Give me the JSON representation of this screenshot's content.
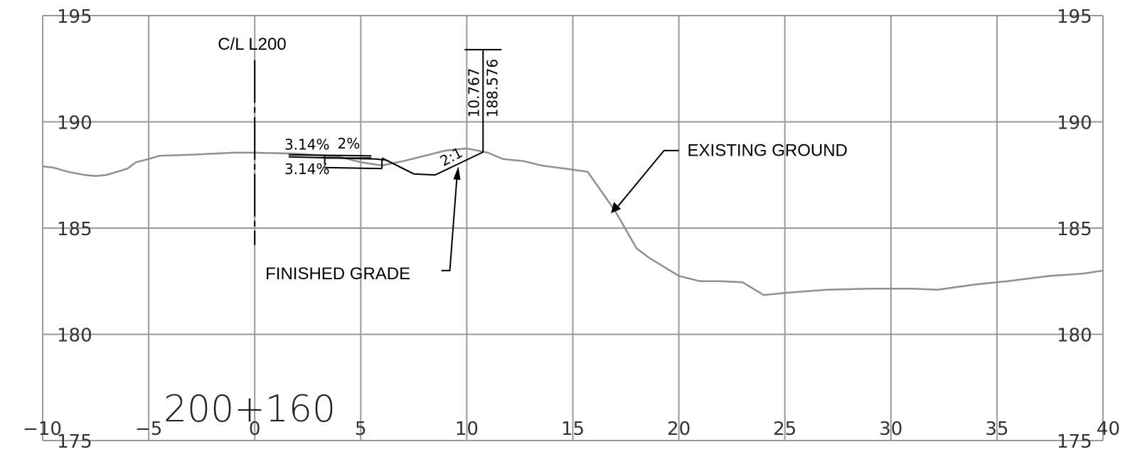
{
  "chart_data": {
    "type": "line",
    "xlim": [
      -10,
      40
    ],
    "ylim": [
      175,
      195
    ],
    "x_ticks": [
      -10,
      -5,
      0,
      5,
      10,
      15,
      20,
      25,
      30,
      35,
      40
    ],
    "y_ticks": [
      175,
      180,
      185,
      190,
      195
    ],
    "x_tick_labels": [
      "−10",
      "−5",
      "0",
      "5",
      "10",
      "15",
      "20",
      "25",
      "30",
      "35",
      "40"
    ],
    "y_tick_labels": [
      "175",
      "180",
      "185",
      "190",
      "195"
    ],
    "grid": true,
    "series": [
      {
        "name": "EXISTING GROUND",
        "color": "#8f8f8f",
        "points": [
          [
            -10,
            187.9
          ],
          [
            -9.5,
            187.85
          ],
          [
            -8.8,
            187.65
          ],
          [
            -8,
            187.5
          ],
          [
            -7.5,
            187.45
          ],
          [
            -7,
            187.5
          ],
          [
            -6.5,
            187.65
          ],
          [
            -6,
            187.8
          ],
          [
            -5.6,
            188.1
          ],
          [
            -5,
            188.25
          ],
          [
            -4.5,
            188.4
          ],
          [
            -3,
            188.45
          ],
          [
            -1,
            188.55
          ],
          [
            0,
            188.55
          ],
          [
            2,
            188.5
          ],
          [
            4,
            188.35
          ],
          [
            5,
            188.1
          ],
          [
            6,
            187.95
          ],
          [
            7,
            188.15
          ],
          [
            8,
            188.4
          ],
          [
            9,
            188.65
          ],
          [
            10,
            188.75
          ],
          [
            11,
            188.55
          ],
          [
            11.7,
            188.25
          ],
          [
            12.7,
            188.15
          ],
          [
            13.5,
            187.95
          ],
          [
            15,
            187.75
          ],
          [
            15.7,
            187.65
          ],
          [
            17,
            185.8
          ],
          [
            18,
            184.05
          ],
          [
            18.6,
            183.6
          ],
          [
            20,
            182.75
          ],
          [
            21,
            182.5
          ],
          [
            22,
            182.5
          ],
          [
            23,
            182.45
          ],
          [
            24,
            181.85
          ],
          [
            25,
            181.95
          ],
          [
            27,
            182.1
          ],
          [
            29,
            182.15
          ],
          [
            31,
            182.15
          ],
          [
            32.2,
            182.1
          ],
          [
            34,
            182.35
          ],
          [
            35.5,
            182.5
          ],
          [
            37.5,
            182.75
          ],
          [
            39,
            182.85
          ],
          [
            40,
            183.0
          ]
        ]
      },
      {
        "name": "FINISHED GRADE",
        "color": "#000000",
        "points": [
          [
            1.6,
            188.35
          ],
          [
            5.7,
            188.25
          ],
          [
            6.2,
            188.2
          ],
          [
            7.5,
            187.55
          ],
          [
            8.5,
            187.5
          ],
          [
            10.77,
            188.58
          ]
        ]
      }
    ],
    "annotations": {
      "centerline_label": "C/L L200",
      "offset_value": "10.767",
      "elevation_value": "188.576",
      "slope_upper": "3.14%",
      "cross_slope": "2%",
      "slope_lower": "3.14%",
      "side_slope": "2:1",
      "existing_ground_label": "EXISTING GROUND",
      "finished_grade_label": "FINISHED GRADE",
      "station_label": "200+160"
    }
  }
}
